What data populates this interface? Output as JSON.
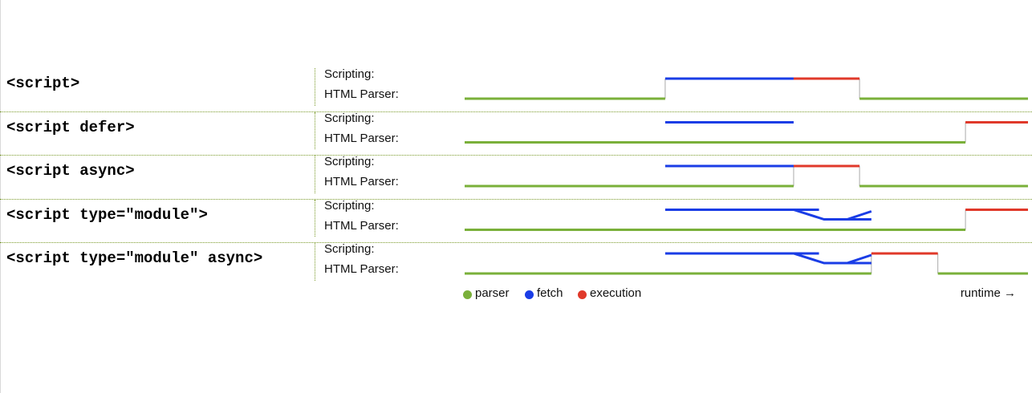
{
  "colors": {
    "parser": "#7ab03a",
    "fetch": "#1a3de6",
    "execution": "#e0392a",
    "connector": "#aaaaaa"
  },
  "lane_labels": {
    "scripting": "Scripting:",
    "html_parser": "HTML Parser:"
  },
  "rows": [
    {
      "label": "<script>",
      "parser": [
        [
          0,
          35.6
        ],
        [
          70.1,
          100
        ]
      ],
      "fetch": [
        [
          35.6,
          58.4
        ]
      ],
      "execution": [
        [
          58.4,
          70.1
        ]
      ],
      "module_fetch": false
    },
    {
      "label": "<script defer>",
      "parser": [
        [
          0,
          88.9
        ]
      ],
      "fetch": [
        [
          35.6,
          58.4
        ]
      ],
      "execution": [
        [
          88.9,
          100
        ]
      ],
      "module_fetch": false
    },
    {
      "label": "<script async>",
      "parser": [
        [
          0,
          58.4
        ],
        [
          70.1,
          100
        ]
      ],
      "fetch": [
        [
          35.6,
          58.4
        ]
      ],
      "execution": [
        [
          58.4,
          70.1
        ]
      ],
      "module_fetch": false
    },
    {
      "label": "<script type=\"module\">",
      "parser": [
        [
          0,
          88.9
        ]
      ],
      "fetch": [
        [
          35.6,
          62.9
        ]
      ],
      "execution": [
        [
          88.9,
          100
        ]
      ],
      "module_fetch": true
    },
    {
      "label": "<script type=\"module\" async>",
      "parser": [
        [
          0,
          72.2
        ],
        [
          84.0,
          100
        ]
      ],
      "fetch": [
        [
          35.6,
          62.9
        ]
      ],
      "execution": [
        [
          72.2,
          84.0
        ]
      ],
      "module_fetch": true
    }
  ],
  "legend": [
    {
      "label": "parser",
      "color": "#7ab03a"
    },
    {
      "label": "fetch",
      "color": "#1a3de6"
    },
    {
      "label": "execution",
      "color": "#e0392a"
    }
  ],
  "axis_label": "runtime →"
}
